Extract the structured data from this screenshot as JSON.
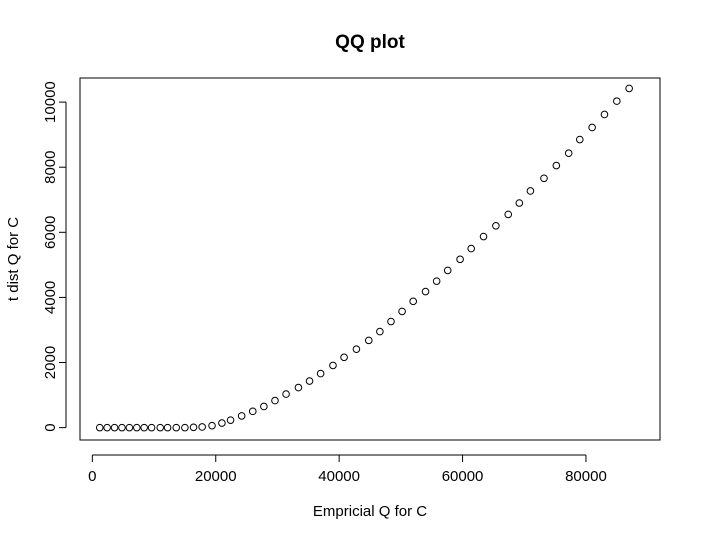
{
  "chart_data": {
    "type": "scatter",
    "title": "QQ plot",
    "xlabel": "Empricial Q for C",
    "ylabel": "t dist Q for C",
    "xlim": [
      -2000,
      92000
    ],
    "ylim": [
      -380,
      10740
    ],
    "xticks": [
      0,
      20000,
      40000,
      60000,
      80000
    ],
    "xtick_labels": [
      "0",
      "20000",
      "40000",
      "60000",
      "80000"
    ],
    "yticks": [
      0,
      2000,
      4000,
      6000,
      8000,
      10000
    ],
    "ytick_labels": [
      "0",
      "2000",
      "4000",
      "6000",
      "8000",
      "10000"
    ],
    "grid": false,
    "marker": "open-circle",
    "series": [
      {
        "x": [
          1200,
          2400,
          3600,
          4800,
          6000,
          7200,
          8400,
          9600,
          11000,
          12200,
          13600,
          15000,
          16400,
          17800,
          19400,
          21000,
          22400,
          24200,
          26000,
          27800,
          29600,
          31400,
          33400,
          35200,
          37000,
          39000,
          40800,
          42800,
          44800,
          46600,
          48400,
          50200,
          52000,
          54000,
          55800,
          57600,
          59600,
          61400,
          63400,
          65400,
          67400,
          69200,
          71000,
          73200,
          75200,
          77200,
          79000,
          81000,
          83000,
          85000,
          87000
        ],
        "y": [
          0,
          0,
          0,
          0,
          0,
          0,
          0,
          0,
          0,
          0,
          0,
          0,
          10,
          20,
          60,
          140,
          230,
          360,
          500,
          650,
          830,
          1030,
          1230,
          1430,
          1660,
          1910,
          2160,
          2410,
          2680,
          2950,
          3260,
          3570,
          3880,
          4180,
          4500,
          4830,
          5170,
          5500,
          5870,
          6200,
          6550,
          6900,
          7270,
          7660,
          8050,
          8430,
          8850,
          9220,
          9620,
          10030,
          10420
        ]
      }
    ]
  }
}
